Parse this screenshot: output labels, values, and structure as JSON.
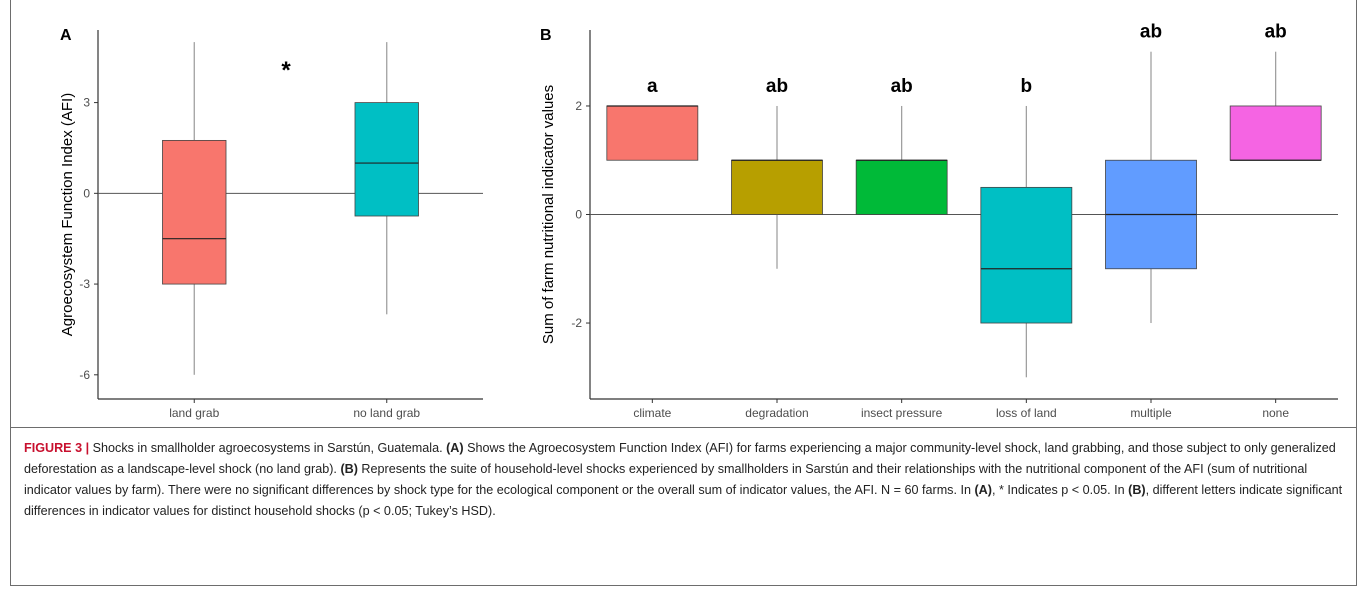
{
  "chart_data": [
    {
      "panel": "A",
      "type": "boxplot",
      "ylabel": "Agroecosystem Function Index (AFI)",
      "xlabel": "",
      "ylim": [
        -6.8,
        5.4
      ],
      "yticks": [
        -6,
        -3,
        0,
        3
      ],
      "ytick_labels": [
        "-6",
        "-3",
        "0",
        "3"
      ],
      "categories": [
        "land grab",
        "no land grab"
      ],
      "boxes": [
        {
          "category": "land grab",
          "min": -6,
          "q1": -3,
          "median": -1.5,
          "q3": 1.75,
          "max": 5,
          "color": "#f8766d"
        },
        {
          "category": "no land grab",
          "min": -4,
          "q1": -0.75,
          "median": 1,
          "q3": 3,
          "max": 5,
          "color": "#00bfc4"
        }
      ],
      "reference_line": 0,
      "annotation": "*",
      "grid": false
    },
    {
      "panel": "B",
      "type": "boxplot",
      "ylabel": "Sum of farm nutritional indicator values",
      "xlabel": "",
      "ylim": [
        -3.4,
        3.4
      ],
      "yticks": [
        -2,
        0,
        2
      ],
      "ytick_labels": [
        "-2",
        "0",
        "2"
      ],
      "categories": [
        "climate",
        "degradation",
        "insect pressure",
        "loss of land",
        "multiple",
        "none"
      ],
      "boxes": [
        {
          "category": "climate",
          "min": 1,
          "q1": 1,
          "median": 2,
          "q3": 2,
          "max": 2,
          "color": "#f8766d",
          "letter": "a"
        },
        {
          "category": "degradation",
          "min": -1,
          "q1": 0,
          "median": 1,
          "q3": 1,
          "max": 2,
          "color": "#b79f00",
          "letter": "ab"
        },
        {
          "category": "insect pressure",
          "min": 0,
          "q1": 0,
          "median": 1,
          "q3": 1,
          "max": 2,
          "color": "#00ba38",
          "letter": "ab"
        },
        {
          "category": "loss of land",
          "min": -3,
          "q1": -2,
          "median": -1,
          "q3": 0.5,
          "max": 2,
          "color": "#00bfc4",
          "letter": "b"
        },
        {
          "category": "multiple",
          "min": -2,
          "q1": -1,
          "median": 0,
          "q3": 1,
          "max": 3,
          "color": "#619cff",
          "letter": "ab"
        },
        {
          "category": "none",
          "min": 1,
          "q1": 1,
          "median": 1,
          "q3": 2,
          "max": 3,
          "color": "#f564e3",
          "letter": "ab"
        }
      ],
      "reference_line": 0,
      "grid": false
    }
  ],
  "caption": {
    "label": "FIGURE 3 |",
    "text": " Shocks in smallholder agroecosystems in Sarstún, Guatemala. (A) Shows the Agroecosystem Function Index (AFI) for farms experiencing a major community-level shock, land grabbing, and those subject to only generalized deforestation as a landscape-level shock (no land grab). (B) Represents the suite of household-level shocks experienced by smallholders in Sarstún and their relationships with the nutritional component of the AFI (sum of nutritional indicator values by farm). There were no significant differences by shock type for the ecological component or the overall sum of indicator values, the AFI. N = 60 farms. In (A), * Indicates p < 0.05. In (B), different letters indicate significant differences in indicator values for distinct household shocks (p < 0.05; Tukey’s HSD)."
  }
}
